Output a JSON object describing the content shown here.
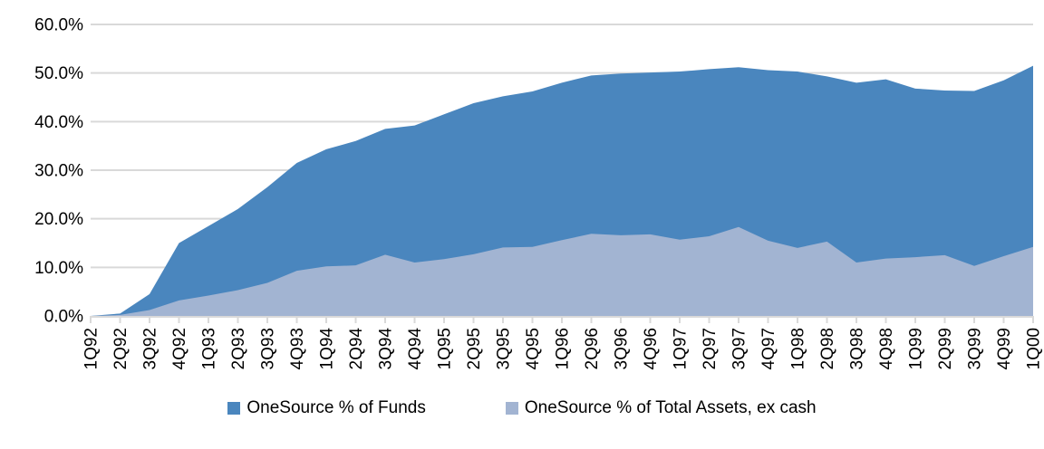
{
  "chart_data": {
    "type": "area",
    "title": "",
    "xlabel": "",
    "ylabel": "",
    "ylim": [
      0,
      60
    ],
    "ytick_step": 10,
    "ytick_labels": [
      "0.0%",
      "10.0%",
      "20.0%",
      "30.0%",
      "40.0%",
      "50.0%",
      "60.0%"
    ],
    "grid": true,
    "legend_position": "bottom",
    "gridline_color": "#d9d9d9",
    "axis_color": "#d9d9d9",
    "text_color": "#000000",
    "categories": [
      "1Q92",
      "2Q92",
      "3Q92",
      "4Q92",
      "1Q93",
      "2Q93",
      "3Q93",
      "4Q93",
      "1Q94",
      "2Q94",
      "3Q94",
      "4Q94",
      "1Q95",
      "2Q95",
      "3Q95",
      "4Q95",
      "1Q96",
      "2Q96",
      "3Q96",
      "4Q96",
      "1Q97",
      "2Q97",
      "3Q97",
      "4Q97",
      "1Q98",
      "2Q98",
      "3Q98",
      "4Q98",
      "1Q99",
      "2Q99",
      "3Q99",
      "4Q99",
      "1Q00"
    ],
    "series": [
      {
        "name": "OneSource % of Funds",
        "color": "#4a86be",
        "values": [
          0,
          0.5,
          4.5,
          15.0,
          18.5,
          22.0,
          26.5,
          31.5,
          34.3,
          36.0,
          38.5,
          39.2,
          41.5,
          43.8,
          45.2,
          46.2,
          48.0,
          49.5,
          49.9,
          50.1,
          50.3,
          50.8,
          51.2,
          50.6,
          50.3,
          49.3,
          48.0,
          48.7,
          46.8,
          46.4,
          46.3,
          48.5,
          51.5
        ]
      },
      {
        "name": "OneSource % of Total Assets, ex cash",
        "color": "#a2b4d2",
        "values": [
          0,
          0.2,
          1.2,
          3.2,
          4.2,
          5.3,
          6.8,
          9.3,
          10.2,
          10.4,
          12.6,
          11.0,
          11.7,
          12.7,
          14.1,
          14.2,
          15.6,
          16.9,
          16.6,
          16.8,
          15.7,
          16.4,
          18.3,
          15.5,
          14.0,
          15.3,
          11.0,
          11.8,
          12.1,
          12.5,
          10.3,
          12.3,
          14.2
        ]
      }
    ]
  }
}
